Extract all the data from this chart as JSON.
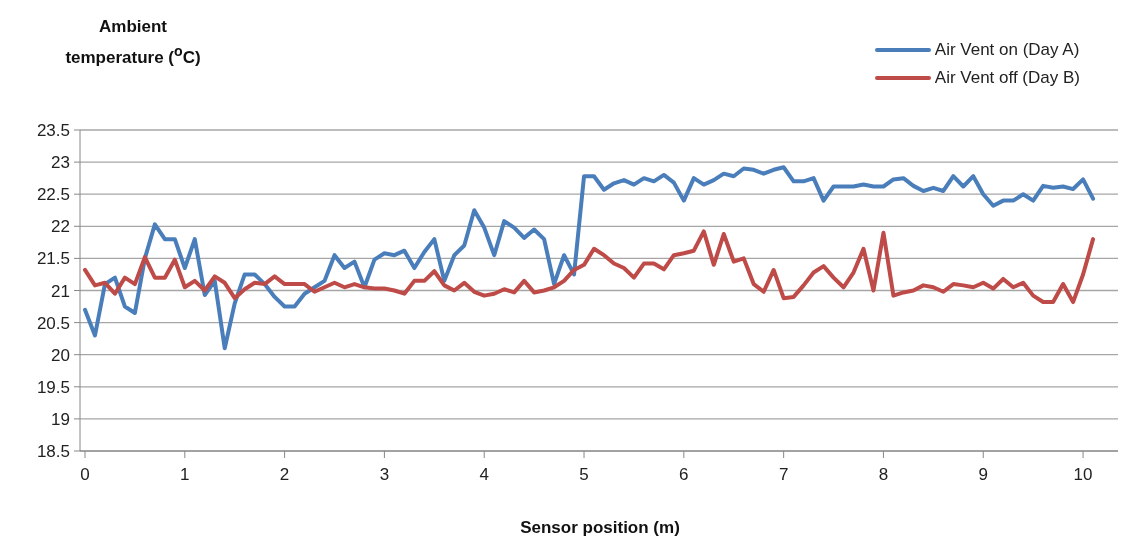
{
  "chart_data": {
    "type": "line",
    "xlabel": "Sensor position (m)",
    "ylabel": "Ambient temperature ($^{o}$C)",
    "x": [
      0,
      0.1,
      0.2,
      0.3,
      0.4,
      0.5,
      0.6,
      0.7,
      0.8,
      0.9,
      1,
      1.1,
      1.2,
      1.3,
      1.4,
      1.5,
      1.6,
      1.7,
      1.8,
      1.9,
      2,
      2.1,
      2.2,
      2.3,
      2.4,
      2.5,
      2.6,
      2.7,
      2.8,
      2.9,
      3,
      3.1,
      3.2,
      3.3,
      3.4,
      3.5,
      3.6,
      3.7,
      3.8,
      3.9,
      4,
      4.1,
      4.2,
      4.3,
      4.4,
      4.5,
      4.6,
      4.7,
      4.8,
      4.9,
      5,
      5.1,
      5.2,
      5.3,
      5.4,
      5.5,
      5.6,
      5.7,
      5.8,
      5.9,
      6,
      6.1,
      6.2,
      6.3,
      6.4,
      6.5,
      6.6,
      6.7,
      6.8,
      6.9,
      7,
      7.1,
      7.2,
      7.3,
      7.4,
      7.5,
      7.6,
      7.7,
      7.8,
      7.9,
      8,
      8.1,
      8.2,
      8.3,
      8.4,
      8.5,
      8.6,
      8.7,
      8.8,
      8.9,
      9,
      9.1,
      9.2,
      9.3,
      9.4,
      9.5,
      9.6,
      9.7,
      9.8,
      9.9,
      10,
      10.1
    ],
    "series": [
      {
        "name": "Air Vent on (Day A)",
        "color": "#4a7ebb",
        "values": [
          20.7,
          20.3,
          21.1,
          21.2,
          20.75,
          20.65,
          21.5,
          22.03,
          21.8,
          21.8,
          21.35,
          21.8,
          20.93,
          21.15,
          20.1,
          20.8,
          21.25,
          21.25,
          21.1,
          20.9,
          20.75,
          20.75,
          20.95,
          21.05,
          21.15,
          21.55,
          21.35,
          21.45,
          21.05,
          21.48,
          21.58,
          21.55,
          21.62,
          21.35,
          21.6,
          21.8,
          21.15,
          21.55,
          21.7,
          22.25,
          21.98,
          21.55,
          22.08,
          21.98,
          21.82,
          21.95,
          21.8,
          21.1,
          21.55,
          21.25,
          22.78,
          22.78,
          22.57,
          22.67,
          22.72,
          22.65,
          22.75,
          22.7,
          22.8,
          22.68,
          22.4,
          22.75,
          22.65,
          22.72,
          22.82,
          22.78,
          22.9,
          22.88,
          22.82,
          22.88,
          22.92,
          22.7,
          22.7,
          22.75,
          22.4,
          22.62,
          22.62,
          22.62,
          22.65,
          22.62,
          22.62,
          22.73,
          22.75,
          22.63,
          22.55,
          22.6,
          22.55,
          22.78,
          22.62,
          22.78,
          22.5,
          22.32,
          22.4,
          22.4,
          22.5,
          22.4,
          22.63,
          22.6,
          22.62,
          22.58,
          22.73,
          22.43
        ]
      },
      {
        "name": "Air Vent off (Day B)",
        "color": "#be4b48",
        "values": [
          21.32,
          21.08,
          21.12,
          20.95,
          21.2,
          21.1,
          21.52,
          21.2,
          21.2,
          21.48,
          21.05,
          21.15,
          21.0,
          21.22,
          21.12,
          20.88,
          21.02,
          21.12,
          21.1,
          21.22,
          21.1,
          21.1,
          21.1,
          20.98,
          21.05,
          21.12,
          21.05,
          21.1,
          21.05,
          21.03,
          21.03,
          21.0,
          20.95,
          21.15,
          21.15,
          21.3,
          21.08,
          21.0,
          21.12,
          20.98,
          20.92,
          20.95,
          21.02,
          20.97,
          21.15,
          20.97,
          21.0,
          21.05,
          21.15,
          21.32,
          21.4,
          21.65,
          21.55,
          21.42,
          21.35,
          21.2,
          21.42,
          21.42,
          21.33,
          21.55,
          21.58,
          21.62,
          21.92,
          21.4,
          21.88,
          21.45,
          21.5,
          21.1,
          20.98,
          21.32,
          20.88,
          20.9,
          21.08,
          21.28,
          21.38,
          21.2,
          21.05,
          21.28,
          21.65,
          21.0,
          21.9,
          20.92,
          20.97,
          21.0,
          21.08,
          21.05,
          20.98,
          21.1,
          21.08,
          21.05,
          21.12,
          21.03,
          21.18,
          21.05,
          21.12,
          20.92,
          20.82,
          20.82,
          21.1,
          20.82,
          21.25,
          21.8
        ]
      }
    ],
    "xlim": [
      -0.05,
      10.35
    ],
    "xticks": [
      0,
      1,
      2,
      3,
      4,
      5,
      6,
      7,
      8,
      9,
      10
    ],
    "ylim": [
      18.5,
      23.5
    ],
    "yticks": [
      18.5,
      19,
      19.5,
      20,
      20.5,
      21,
      21.5,
      22,
      22.5,
      23,
      23.5
    ],
    "grid": "y",
    "legend": "top right"
  }
}
